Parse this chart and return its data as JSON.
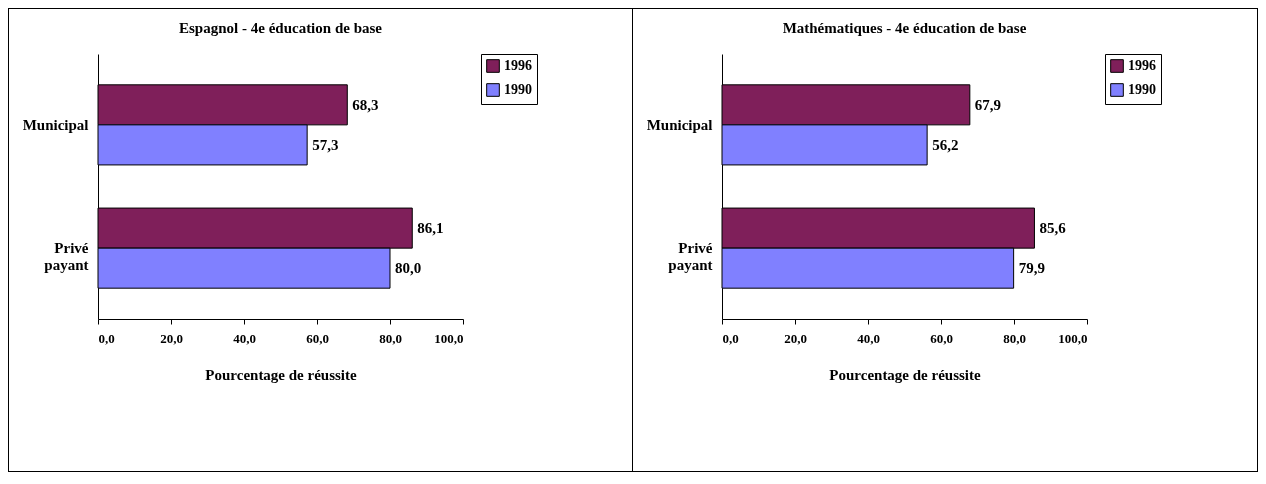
{
  "chart_data": [
    {
      "type": "bar",
      "orientation": "horizontal",
      "title": "Espagnol - 4e éducation de base",
      "xlabel": "Pourcentage de réussite",
      "categories": [
        "Municipal",
        "Privé payant"
      ],
      "series": [
        {
          "name": "1996",
          "color": "#7f1f5a",
          "values": [
            68.3,
            86.1
          ],
          "value_labels": [
            "68,3",
            "86,1"
          ]
        },
        {
          "name": "1990",
          "color": "#8080ff",
          "values": [
            57.3,
            80.0
          ],
          "value_labels": [
            "57,3",
            "80,0"
          ]
        }
      ],
      "xlim": [
        0,
        100
      ],
      "xticks": [
        {
          "value": 0,
          "label": "0,0"
        },
        {
          "value": 20,
          "label": "20,0"
        },
        {
          "value": 40,
          "label": "40,0"
        },
        {
          "value": 60,
          "label": "60,0"
        },
        {
          "value": 80,
          "label": "80,0"
        },
        {
          "value": 100,
          "label": "100,0"
        }
      ],
      "legend": "right",
      "grid": false
    },
    {
      "type": "bar",
      "orientation": "horizontal",
      "title": "Mathématiques - 4e éducation de base",
      "xlabel": "Pourcentage de réussite",
      "categories": [
        "Municipal",
        "Privé payant"
      ],
      "series": [
        {
          "name": "1996",
          "color": "#7f1f5a",
          "values": [
            67.9,
            85.6
          ],
          "value_labels": [
            "67,9",
            "85,6"
          ]
        },
        {
          "name": "1990",
          "color": "#8080ff",
          "values": [
            56.2,
            79.9
          ],
          "value_labels": [
            "56,2",
            "79,9"
          ]
        }
      ],
      "xlim": [
        0,
        100
      ],
      "xticks": [
        {
          "value": 0,
          "label": "0,0"
        },
        {
          "value": 20,
          "label": "20,0"
        },
        {
          "value": 40,
          "label": "40,0"
        },
        {
          "value": 60,
          "label": "60,0"
        },
        {
          "value": 80,
          "label": "80,0"
        },
        {
          "value": 100,
          "label": "100,0"
        }
      ],
      "legend": "right",
      "grid": false
    }
  ]
}
